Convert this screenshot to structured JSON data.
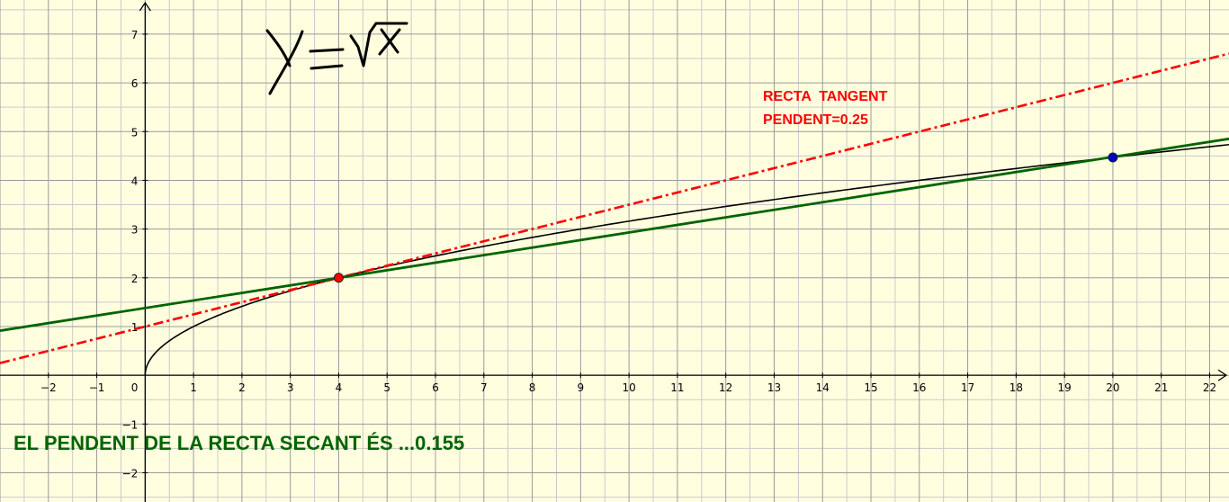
{
  "chart_data": {
    "type": "line",
    "xlim": [
      -3,
      22.4
    ],
    "ylim": [
      -2.6,
      7.7
    ],
    "grid": true,
    "x_ticks": [
      -2,
      -1,
      1,
      2,
      3,
      4,
      5,
      6,
      7,
      8,
      9,
      10,
      11,
      12,
      13,
      14,
      15,
      16,
      17,
      18,
      19,
      20,
      21,
      22
    ],
    "y_ticks": [
      -2,
      -1,
      1,
      2,
      3,
      4,
      5,
      6,
      7
    ],
    "origin_label": "0",
    "tick_labels": {
      "x": [
        "−2",
        "−1",
        "1",
        "2",
        "3",
        "4",
        "5",
        "6",
        "7",
        "8",
        "9",
        "10",
        "11",
        "12",
        "13",
        "14",
        "15",
        "16",
        "17",
        "18",
        "19",
        "20",
        "21",
        "22"
      ],
      "y": [
        "−2",
        "−1",
        "1",
        "2",
        "3",
        "4",
        "5",
        "6",
        "7"
      ]
    },
    "series": [
      {
        "kind": "function",
        "expression": "sqrt(x)",
        "color": "#000000",
        "domain": [
          0,
          22.4
        ]
      },
      {
        "kind": "line",
        "role": "tangent",
        "slope": 0.25,
        "intercept": 1,
        "color": "#ff0000",
        "style": "dash-dot"
      },
      {
        "kind": "line",
        "role": "secant",
        "slope": 0.155,
        "intercept": 1.38,
        "color": "#006400",
        "style": "solid"
      }
    ],
    "points": [
      {
        "x": 4,
        "y": 2,
        "color": "#ff0000"
      },
      {
        "x": 20,
        "y": 4.47,
        "color": "#0000cc"
      }
    ],
    "handwritten_annotation": "y = √x",
    "annotations": {
      "tangent_line1": "RECTA  TANGENT",
      "tangent_line2": "PENDENT=0.25",
      "secant": "EL PENDENT DE LA RECTA SECANT ÉS ...0.155"
    }
  }
}
